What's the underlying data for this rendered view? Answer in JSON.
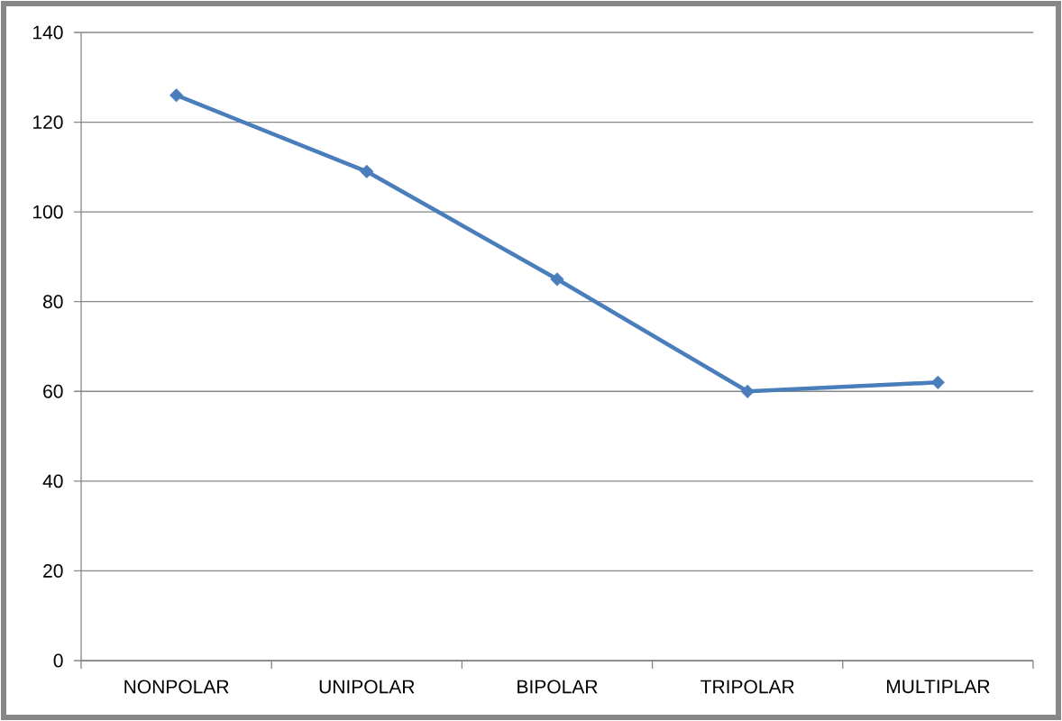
{
  "chart_data": {
    "type": "line",
    "categories": [
      "NONPOLAR",
      "UNIPOLAR",
      "BIPOLAR",
      "TRIPOLAR",
      "MULTIPLAR"
    ],
    "series": [
      {
        "color": "#4a7ebb",
        "values": [
          126,
          109,
          85,
          60,
          62
        ]
      }
    ],
    "ylim": [
      0,
      140
    ],
    "yticks": [
      0,
      20,
      40,
      60,
      80,
      100,
      120,
      140
    ],
    "grid": "y",
    "marker": "diamond",
    "line_style": "solid"
  }
}
